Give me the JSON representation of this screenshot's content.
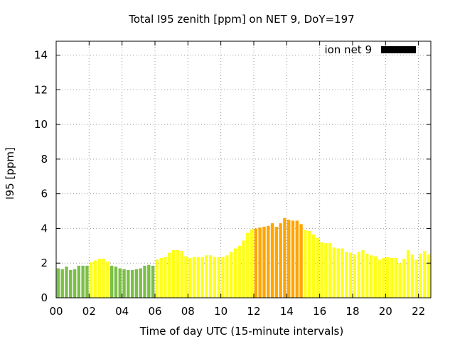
{
  "chart_data": {
    "type": "bar",
    "title": "Total I95 zenith [ppm] on NET 9, DoY=197",
    "xlabel": "Time of day UTC (15-minute intervals)",
    "ylabel": "I95 [ppm]",
    "xlim": [
      0,
      22.75
    ],
    "ylim": [
      0,
      14.8
    ],
    "x_ticks": [
      0,
      2,
      4,
      6,
      8,
      10,
      12,
      14,
      16,
      18,
      20,
      22
    ],
    "x_tick_labels": [
      "00",
      "02",
      "04",
      "06",
      "08",
      "10",
      "12",
      "14",
      "16",
      "18",
      "20",
      "22"
    ],
    "y_ticks": [
      0,
      2,
      4,
      6,
      8,
      10,
      12,
      14
    ],
    "y_tick_labels": [
      "0",
      "2",
      "4",
      "6",
      "8",
      "10",
      "12",
      "14"
    ],
    "grid": true,
    "legend": {
      "position": "top-right",
      "label": "ion net 9",
      "color": "#000000"
    },
    "bar_width_hours": 0.19,
    "color_scale": {
      "green": "#7cbf46",
      "yellow": "#ffff1a",
      "orange": "#ffa500"
    },
    "series": [
      {
        "x": [
          0.125,
          0.375,
          0.625,
          0.875,
          1.125,
          1.375,
          1.625,
          1.875,
          2.125,
          2.375,
          2.625,
          2.875,
          3.125,
          3.375,
          3.625,
          3.875,
          4.125,
          4.375,
          4.625,
          4.875,
          5.125,
          5.375,
          5.625,
          5.875,
          6.125,
          6.375,
          6.625,
          6.875,
          7.125,
          7.375,
          7.625,
          7.875,
          8.125,
          8.375,
          8.625,
          8.875,
          9.125,
          9.375,
          9.625,
          9.875,
          10.125,
          10.375,
          10.625,
          10.875,
          11.125,
          11.375,
          11.625,
          11.875,
          12.125,
          12.375,
          12.625,
          12.875,
          13.125,
          13.375,
          13.625,
          13.875,
          14.125,
          14.375,
          14.625,
          14.875,
          15.125,
          15.375,
          15.625,
          15.875,
          16.125,
          16.375,
          16.625,
          16.875,
          17.125,
          17.375,
          17.625,
          17.875,
          18.125,
          18.375,
          18.625,
          18.875,
          19.125,
          19.375,
          19.625,
          19.875,
          20.125,
          20.375,
          20.625,
          20.875,
          21.125,
          21.375,
          21.625,
          21.875,
          22.125,
          22.375,
          22.625
        ],
        "values": [
          1.7,
          1.65,
          1.8,
          1.6,
          1.65,
          1.85,
          1.85,
          1.85,
          2.05,
          2.15,
          2.25,
          2.25,
          2.1,
          1.85,
          1.8,
          1.7,
          1.65,
          1.6,
          1.6,
          1.65,
          1.7,
          1.85,
          1.9,
          1.85,
          2.2,
          2.3,
          2.35,
          2.6,
          2.75,
          2.75,
          2.7,
          2.4,
          2.3,
          2.35,
          2.35,
          2.35,
          2.45,
          2.45,
          2.35,
          2.35,
          2.35,
          2.45,
          2.65,
          2.85,
          3.0,
          3.3,
          3.75,
          3.95,
          4.0,
          4.05,
          4.1,
          4.15,
          4.3,
          4.1,
          4.3,
          4.6,
          4.5,
          4.45,
          4.45,
          4.25,
          3.9,
          3.85,
          3.65,
          3.45,
          3.2,
          3.15,
          3.15,
          2.9,
          2.85,
          2.85,
          2.65,
          2.6,
          2.5,
          2.65,
          2.75,
          2.55,
          2.45,
          2.4,
          2.2,
          2.3,
          2.35,
          2.3,
          2.3,
          2.0,
          2.25,
          2.75,
          2.5,
          2.2,
          2.55,
          2.7,
          2.5
        ],
        "colors": [
          "green",
          "green",
          "green",
          "green",
          "green",
          "green",
          "green",
          "green",
          "yellow",
          "yellow",
          "yellow",
          "yellow",
          "yellow",
          "green",
          "green",
          "green",
          "green",
          "green",
          "green",
          "green",
          "green",
          "green",
          "green",
          "green",
          "yellow",
          "yellow",
          "yellow",
          "yellow",
          "yellow",
          "yellow",
          "yellow",
          "yellow",
          "yellow",
          "yellow",
          "yellow",
          "yellow",
          "yellow",
          "yellow",
          "yellow",
          "yellow",
          "yellow",
          "yellow",
          "yellow",
          "yellow",
          "yellow",
          "yellow",
          "yellow",
          "yellow",
          "orange",
          "orange",
          "orange",
          "orange",
          "orange",
          "orange",
          "orange",
          "orange",
          "orange",
          "orange",
          "orange",
          "orange",
          "yellow",
          "yellow",
          "yellow",
          "yellow",
          "yellow",
          "yellow",
          "yellow",
          "yellow",
          "yellow",
          "yellow",
          "yellow",
          "yellow",
          "yellow",
          "yellow",
          "yellow",
          "yellow",
          "yellow",
          "yellow",
          "yellow",
          "yellow",
          "yellow",
          "yellow",
          "yellow",
          "yellow",
          "yellow",
          "yellow",
          "yellow",
          "yellow",
          "yellow",
          "yellow",
          "yellow"
        ]
      }
    ]
  }
}
